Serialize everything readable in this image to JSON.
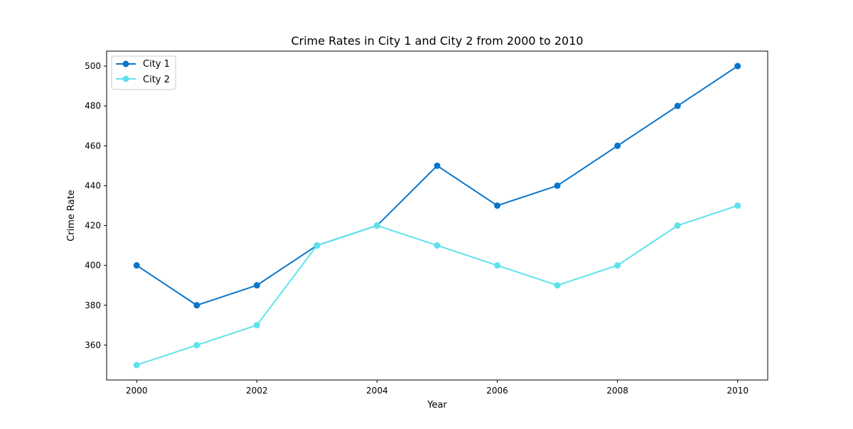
{
  "chart_data": {
    "type": "line",
    "title": "Crime Rates in City 1 and City 2 from 2000 to 2010",
    "xlabel": "Year",
    "ylabel": "Crime Rate",
    "x": [
      2000,
      2001,
      2002,
      2003,
      2004,
      2005,
      2006,
      2007,
      2008,
      2009,
      2010
    ],
    "xlim": [
      1999.5,
      2010.5
    ],
    "ylim": [
      342.5,
      507.5
    ],
    "x_ticks": [
      2000,
      2002,
      2004,
      2006,
      2008,
      2010
    ],
    "x_tick_labels": [
      "2000",
      "2002",
      "2004",
      "2006",
      "2008",
      "2010"
    ],
    "y_ticks": [
      360,
      380,
      400,
      420,
      440,
      460,
      480,
      500
    ],
    "y_tick_labels": [
      "360",
      "380",
      "400",
      "420",
      "440",
      "460",
      "480",
      "500"
    ],
    "grid": false,
    "legend_position": "upper-left",
    "series": [
      {
        "name": "City 1",
        "color": "#0a75c9",
        "values": [
          400,
          380,
          390,
          410,
          420,
          450,
          430,
          440,
          460,
          480,
          500
        ]
      },
      {
        "name": "City 2",
        "color": "#5ee2ec",
        "values": [
          350,
          360,
          370,
          410,
          420,
          410,
          400,
          390,
          400,
          420,
          430
        ]
      }
    ]
  }
}
